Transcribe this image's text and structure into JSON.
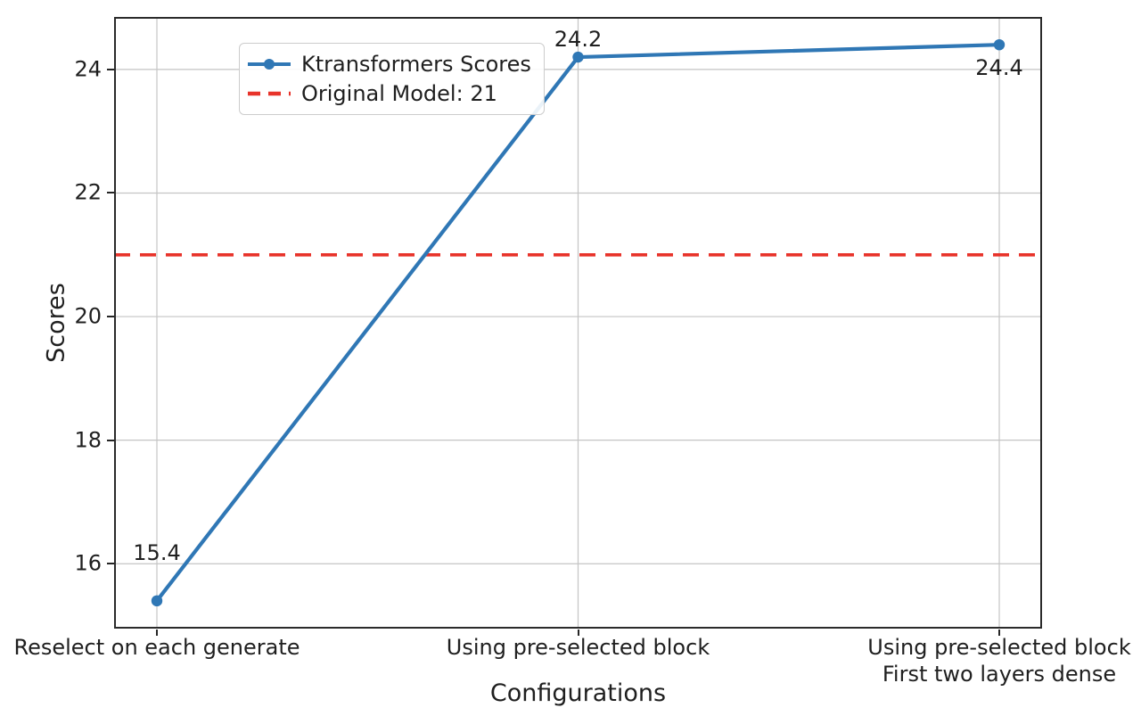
{
  "chart_data": {
    "type": "line",
    "title": "",
    "xlabel": "Configurations",
    "ylabel": "Scores",
    "categories": [
      "Reselect on each generate",
      "Using pre-selected block",
      "Using pre-selected block\nFirst two layers dense"
    ],
    "series": [
      {
        "name": "Ktransformers Scores",
        "values": [
          15.4,
          24.2,
          24.4
        ],
        "color": "#2f77b5",
        "marker": "circle"
      }
    ],
    "reference_line": {
      "label": "Original Model: 21",
      "value": 21,
      "color": "#e8332a",
      "style": "dashed"
    },
    "value_labels": [
      "15.4",
      "24.2",
      "24.4"
    ],
    "yticks": [
      16,
      18,
      20,
      22,
      24
    ],
    "ylim": [
      14.95,
      24.85
    ],
    "grid": true,
    "grid_color": "#c4c4c4",
    "spine_color": "#2b2b2b",
    "legend_position": "upper left"
  }
}
